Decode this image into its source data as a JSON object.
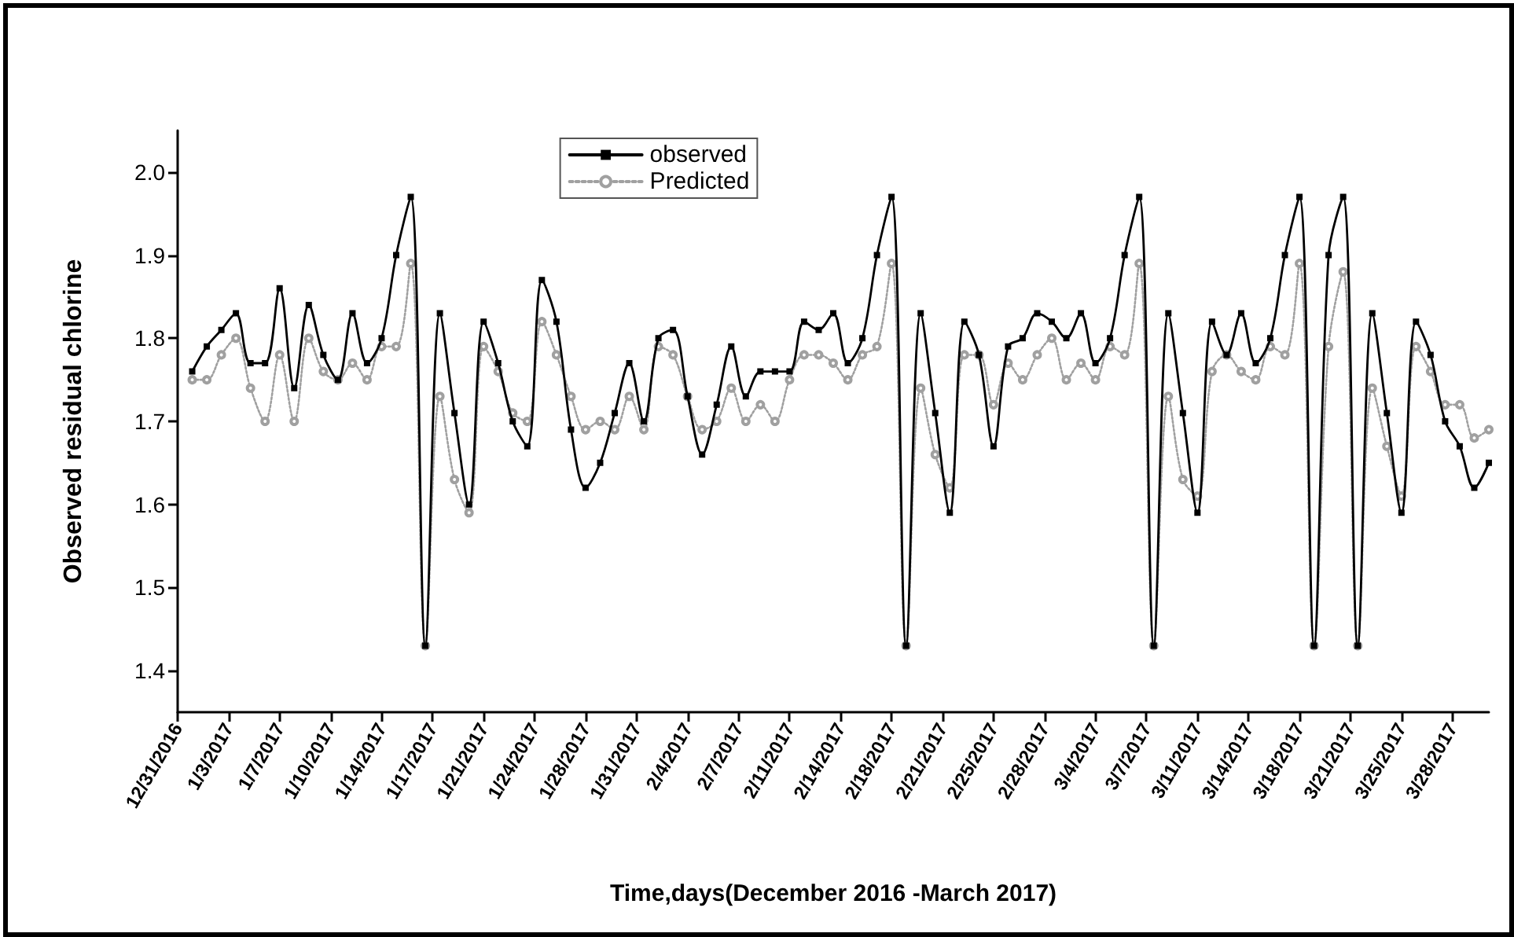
{
  "chart_data": {
    "type": "line",
    "xlabel": "Time,days(December 2016 -March 2017)",
    "ylabel": "Observed residual chlorine",
    "x": [
      "2017-01-01",
      "2017-01-02",
      "2017-01-03",
      "2017-01-04",
      "2017-01-05",
      "2017-01-06",
      "2017-01-07",
      "2017-01-08",
      "2017-01-09",
      "2017-01-10",
      "2017-01-11",
      "2017-01-12",
      "2017-01-13",
      "2017-01-14",
      "2017-01-15",
      "2017-01-16",
      "2017-01-17",
      "2017-01-18",
      "2017-01-19",
      "2017-01-20",
      "2017-01-21",
      "2017-01-22",
      "2017-01-23",
      "2017-01-24",
      "2017-01-25",
      "2017-01-26",
      "2017-01-27",
      "2017-01-28",
      "2017-01-29",
      "2017-01-30",
      "2017-01-31",
      "2017-02-01",
      "2017-02-02",
      "2017-02-03",
      "2017-02-04",
      "2017-02-05",
      "2017-02-06",
      "2017-02-07",
      "2017-02-08",
      "2017-02-09",
      "2017-02-10",
      "2017-02-11",
      "2017-02-12",
      "2017-02-13",
      "2017-02-14",
      "2017-02-15",
      "2017-02-16",
      "2017-02-17",
      "2017-02-18",
      "2017-02-19",
      "2017-02-20",
      "2017-02-21",
      "2017-02-22",
      "2017-02-23",
      "2017-02-24",
      "2017-02-25",
      "2017-02-26",
      "2017-02-27",
      "2017-02-28",
      "2017-03-01",
      "2017-03-02",
      "2017-03-03",
      "2017-03-04",
      "2017-03-05",
      "2017-03-06",
      "2017-03-07",
      "2017-03-08",
      "2017-03-09",
      "2017-03-10",
      "2017-03-11",
      "2017-03-12",
      "2017-03-13",
      "2017-03-14",
      "2017-03-15",
      "2017-03-16",
      "2017-03-17",
      "2017-03-18",
      "2017-03-19",
      "2017-03-20",
      "2017-03-21",
      "2017-03-22",
      "2017-03-23",
      "2017-03-24",
      "2017-03-25",
      "2017-03-26",
      "2017-03-27",
      "2017-03-28",
      "2017-03-29",
      "2017-03-30",
      "2017-03-31"
    ],
    "series": [
      {
        "name": "observed",
        "color": "#000000",
        "marker": "square",
        "line_style": "solid",
        "values": [
          1.76,
          1.79,
          1.81,
          1.83,
          1.77,
          1.77,
          1.86,
          1.74,
          1.84,
          1.78,
          1.75,
          1.83,
          1.77,
          1.8,
          1.9,
          1.97,
          1.43,
          1.83,
          1.71,
          1.6,
          1.82,
          1.77,
          1.7,
          1.67,
          1.87,
          1.82,
          1.69,
          1.62,
          1.65,
          1.71,
          1.77,
          1.7,
          1.8,
          1.81,
          1.73,
          1.66,
          1.72,
          1.79,
          1.73,
          1.76,
          1.76,
          1.76,
          1.82,
          1.81,
          1.83,
          1.77,
          1.8,
          1.9,
          1.97,
          1.43,
          1.83,
          1.71,
          1.59,
          1.82,
          1.78,
          1.67,
          1.79,
          1.8,
          1.83,
          1.82,
          1.8,
          1.83,
          1.77,
          1.8,
          1.9,
          1.97,
          1.43,
          1.83,
          1.71,
          1.59,
          1.82,
          1.78,
          1.83,
          1.77,
          1.8,
          1.9,
          1.97,
          1.43,
          1.9,
          1.97,
          1.43,
          1.83,
          1.71,
          1.59,
          1.82,
          1.78,
          1.7,
          1.67,
          1.62,
          1.65
        ]
      },
      {
        "name": "Predicted",
        "color": "#a0a0a0",
        "marker": "circle",
        "line_style": "dotted",
        "values": [
          1.75,
          1.75,
          1.78,
          1.8,
          1.74,
          1.7,
          1.78,
          1.7,
          1.8,
          1.76,
          1.75,
          1.77,
          1.75,
          1.79,
          1.79,
          1.89,
          1.43,
          1.73,
          1.63,
          1.59,
          1.79,
          1.76,
          1.71,
          1.7,
          1.82,
          1.78,
          1.73,
          1.69,
          1.7,
          1.69,
          1.73,
          1.69,
          1.79,
          1.78,
          1.73,
          1.69,
          1.7,
          1.74,
          1.7,
          1.72,
          1.7,
          1.75,
          1.78,
          1.78,
          1.77,
          1.75,
          1.78,
          1.79,
          1.89,
          1.43,
          1.74,
          1.66,
          1.62,
          1.78,
          1.78,
          1.72,
          1.77,
          1.75,
          1.78,
          1.8,
          1.75,
          1.77,
          1.75,
          1.79,
          1.78,
          1.89,
          1.43,
          1.73,
          1.63,
          1.61,
          1.76,
          1.78,
          1.76,
          1.75,
          1.79,
          1.78,
          1.89,
          1.43,
          1.79,
          1.88,
          1.43,
          1.74,
          1.67,
          1.61,
          1.79,
          1.76,
          1.72,
          1.72,
          1.68,
          1.69
        ]
      }
    ],
    "xlim": [
      "2016-12-31",
      "2017-03-31"
    ],
    "xticks": [
      {
        "value": "2016-12-31",
        "label": "12/31/2016"
      },
      {
        "value": "2017-01-03T12:00",
        "label": "1/3/2017"
      },
      {
        "value": "2017-01-07",
        "label": "1/7/2017"
      },
      {
        "value": "2017-01-10T12:00",
        "label": "1/10/2017"
      },
      {
        "value": "2017-01-14",
        "label": "1/14/2017"
      },
      {
        "value": "2017-01-17T12:00",
        "label": "1/17/2017"
      },
      {
        "value": "2017-01-21",
        "label": "1/21/2017"
      },
      {
        "value": "2017-01-24T12:00",
        "label": "1/24/2017"
      },
      {
        "value": "2017-01-28",
        "label": "1/28/2017"
      },
      {
        "value": "2017-01-31T12:00",
        "label": "1/31/2017"
      },
      {
        "value": "2017-02-04",
        "label": "2/4/2017"
      },
      {
        "value": "2017-02-07T12:00",
        "label": "2/7/2017"
      },
      {
        "value": "2017-02-11",
        "label": "2/11/2017"
      },
      {
        "value": "2017-02-14T12:00",
        "label": "2/14/2017"
      },
      {
        "value": "2017-02-18",
        "label": "2/18/2017"
      },
      {
        "value": "2017-02-21T12:00",
        "label": "2/21/2017"
      },
      {
        "value": "2017-02-25",
        "label": "2/25/2017"
      },
      {
        "value": "2017-02-28T12:00",
        "label": "2/28/2017"
      },
      {
        "value": "2017-03-04",
        "label": "3/4/2017"
      },
      {
        "value": "2017-03-07T12:00",
        "label": "3/7/2017"
      },
      {
        "value": "2017-03-11",
        "label": "3/11/2017"
      },
      {
        "value": "2017-03-14T12:00",
        "label": "3/14/2017"
      },
      {
        "value": "2017-03-18",
        "label": "3/18/2017"
      },
      {
        "value": "2017-03-21T12:00",
        "label": "3/21/2017"
      },
      {
        "value": "2017-03-25",
        "label": "3/25/2017"
      },
      {
        "value": "2017-03-28T12:00",
        "label": "3/28/2017"
      }
    ],
    "ylim": [
      1.35,
      2.05
    ],
    "yticks": [
      1.4,
      1.5,
      1.6,
      1.7,
      1.8,
      1.9,
      {
        "value": 2.0,
        "label": "2.0"
      }
    ],
    "grid": false,
    "legend": "top"
  }
}
